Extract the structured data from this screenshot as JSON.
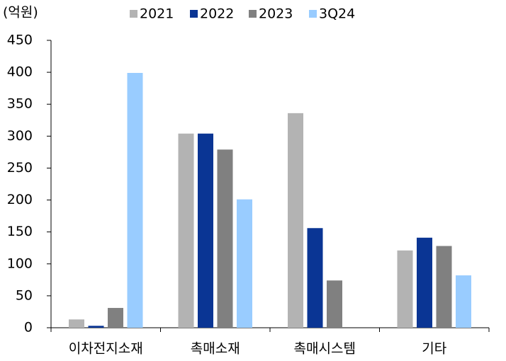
{
  "chart_data": {
    "type": "bar",
    "unit": "(억원)",
    "categories": [
      "이차전지소재",
      "촉매소재",
      "촉매시스템",
      "기타"
    ],
    "series": [
      {
        "name": "2021",
        "color": "#b3b3b3",
        "values": [
          13,
          304,
          336,
          121
        ]
      },
      {
        "name": "2022",
        "color": "#0a3594",
        "values": [
          3,
          304,
          156,
          141
        ]
      },
      {
        "name": "2023",
        "color": "#808080",
        "values": [
          31,
          279,
          74,
          128
        ]
      },
      {
        "name": "3Q24",
        "color": "#99ccff",
        "values": [
          399,
          201,
          null,
          82
        ]
      }
    ],
    "ylim": [
      0,
      450
    ],
    "yticks": [
      0,
      50,
      100,
      150,
      200,
      250,
      300,
      350,
      400,
      450
    ],
    "grid": false
  }
}
